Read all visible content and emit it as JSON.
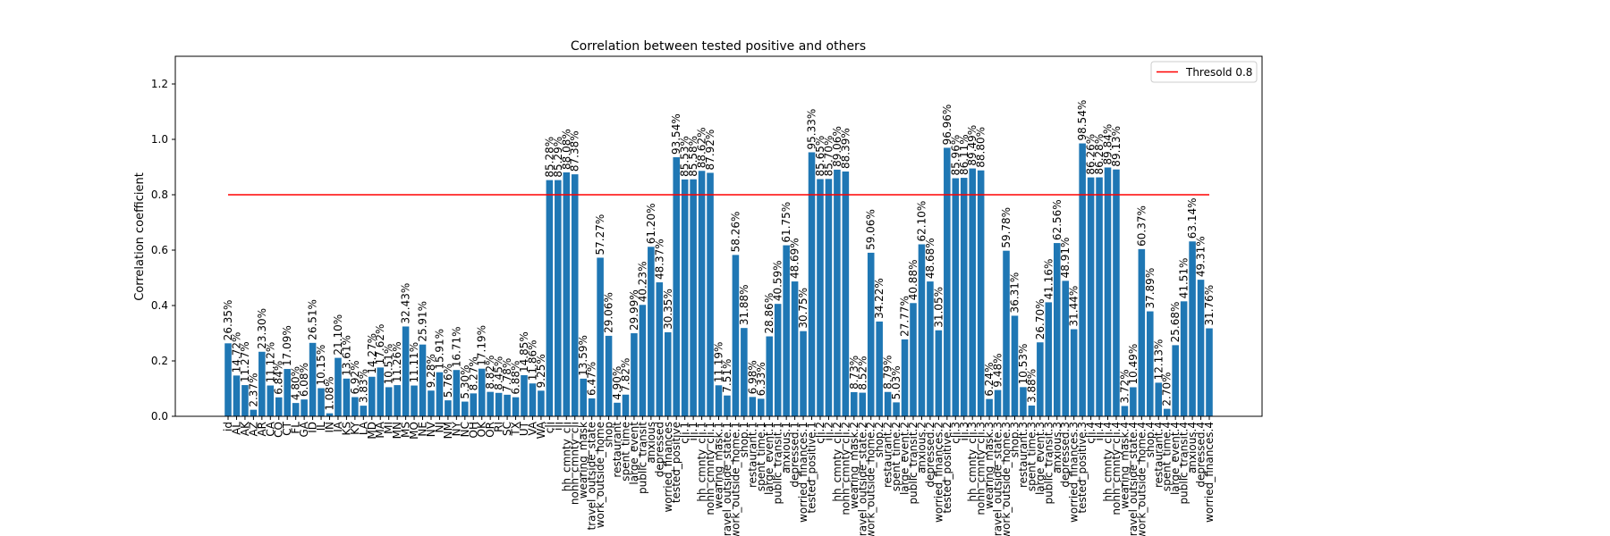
{
  "chart_data": {
    "type": "bar",
    "title": "Correlation between tested positive and others",
    "y_label": "Correlation coefficient",
    "color": "#1f77b4",
    "ylim": [
      0,
      1.3
    ],
    "yticks": [
      {
        "value": 0,
        "label": "0.0"
      },
      {
        "value": 0.2,
        "label": "0.2"
      },
      {
        "value": 0.4,
        "label": "0.4"
      },
      {
        "value": 0.6,
        "label": "0.6"
      },
      {
        "value": 0.8,
        "label": "0.8"
      },
      {
        "value": 1.0,
        "label": "1.0"
      },
      {
        "value": 1.2,
        "label": "1.2"
      }
    ],
    "threshold": {
      "name": "Thresold 0.8",
      "value": 0.8,
      "color": "#ff0000"
    },
    "legend_position": "upper right",
    "categories": [
      "id",
      "AL",
      "AK",
      "AZ",
      "AR",
      "CA",
      "CO",
      "CT",
      "FL",
      "GA",
      "ID",
      "IL",
      "IN",
      "IA",
      "KS",
      "KY",
      "LA",
      "MD",
      "MA",
      "MI",
      "MN",
      "MS",
      "MO",
      "NE",
      "NV",
      "NJ",
      "NM",
      "NY",
      "NC",
      "OH",
      "OK",
      "OR",
      "RI",
      "SC",
      "TX",
      "UT",
      "VA",
      "WA",
      "cli",
      "ili",
      "hh_cmnty_cli",
      "nohh_cmnty_cli",
      "wearing_mask",
      "travel_outside_state",
      "work_outside_home",
      "shop",
      "restaurant",
      "spent_time",
      "large_event",
      "public_transit",
      "anxious",
      "depressed",
      "worried_finances",
      "tested_positive",
      "cli.1",
      "ili.1",
      "hh_cmnty_cli.1",
      "nohh_cmnty_cli.1",
      "wearing_mask.1",
      "travel_outside_state.1",
      "work_outside_home.1",
      "shop.1",
      "restaurant.1",
      "spent_time.1",
      "large_event.1",
      "public_transit.1",
      "anxious.1",
      "depressed.1",
      "worried_finances.1",
      "tested_positive.1",
      "cli.2",
      "ili.2",
      "hh_cmnty_cli.2",
      "nohh_cmnty_cli.2",
      "wearing_mask.2",
      "travel_outside_state.2",
      "work_outside_home.2",
      "shop.2",
      "restaurant.2",
      "spent_time.2",
      "large_event.2",
      "public_transit.2",
      "anxious.2",
      "depressed.2",
      "worried_finances.2",
      "tested_positive.2",
      "cli.3",
      "ili.3",
      "hh_cmnty_cli.3",
      "nohh_cmnty_cli.3",
      "wearing_mask.3",
      "travel_outside_state.3",
      "work_outside_home.3",
      "shop.3",
      "restaurant.3",
      "spent_time.3",
      "large_event.3",
      "public_transit.3",
      "anxious.3",
      "depressed.3",
      "worried_finances.3",
      "tested_positive.3",
      "cli.4",
      "ili.4",
      "hh_cmnty_cli.4",
      "nohh_cmnty_cli.4",
      "wearing_mask.4",
      "travel_outside_state.4",
      "work_outside_home.4",
      "shop.4",
      "restaurant.4",
      "spent_time.4",
      "large_event.4",
      "public_transit.4",
      "anxious.4",
      "depressed.4",
      "worried_finances.4"
    ],
    "values": [
      0.2635,
      0.1472,
      0.1127,
      0.0237,
      0.233,
      0.1112,
      0.0684,
      0.1709,
      0.048,
      0.0608,
      0.2651,
      0.1015,
      0.0108,
      0.211,
      0.1361,
      0.0692,
      0.0383,
      0.1427,
      0.1762,
      0.1051,
      0.1126,
      0.3243,
      0.1111,
      0.2591,
      0.0928,
      0.1591,
      0.0576,
      0.1671,
      0.053,
      0.0827,
      0.1719,
      0.0882,
      0.0845,
      0.0778,
      0.0688,
      0.1485,
      0.1186,
      0.0925,
      0.8528,
      0.8529,
      0.8808,
      0.8738,
      0.1359,
      0.0647,
      0.5727,
      0.2906,
      0.049,
      0.0782,
      0.2999,
      0.4023,
      0.612,
      0.4837,
      0.3035,
      0.9354,
      0.8553,
      0.8558,
      0.8862,
      0.8792,
      0.1119,
      0.0751,
      0.5826,
      0.3188,
      0.0698,
      0.0633,
      0.2886,
      0.4059,
      0.6175,
      0.4869,
      0.3075,
      0.9533,
      0.8565,
      0.857,
      0.8906,
      0.8839,
      0.0873,
      0.0852,
      0.5906,
      0.3422,
      0.0879,
      0.0503,
      0.2777,
      0.4088,
      0.621,
      0.4868,
      0.3105,
      0.9696,
      0.8596,
      0.8611,
      0.8949,
      0.888,
      0.0624,
      0.0948,
      0.5978,
      0.3631,
      0.1053,
      0.0388,
      0.267,
      0.4116,
      0.6256,
      0.4891,
      0.3144,
      0.9854,
      0.8626,
      0.8628,
      0.8984,
      0.8913,
      0.0372,
      0.1049,
      0.6037,
      0.3789,
      0.1213,
      0.027,
      0.2568,
      0.4151,
      0.6314,
      0.4931,
      0.3176
    ],
    "value_labels": [
      "26.35%",
      "14.72%",
      "11.27%",
      "2.37%",
      "23.30%",
      "11.12%",
      "6.84%",
      "17.09%",
      "4.80%",
      "6.08%",
      "26.51%",
      "10.15%",
      "1.08%",
      "21.10%",
      "13.61%",
      "6.92%",
      "3.83%",
      "14.27%",
      "17.62%",
      "10.51%",
      "11.26%",
      "32.43%",
      "11.11%",
      "25.91%",
      "9.28%",
      "15.91%",
      "5.76%",
      "16.71%",
      "5.30%",
      "8.27%",
      "17.19%",
      "8.82%",
      "8.45%",
      "7.78%",
      "6.88%",
      "14.85%",
      "11.86%",
      "9.25%",
      "85.28%",
      "85.29%",
      "88.08%",
      "87.38%",
      "13.59%",
      "6.47%",
      "57.27%",
      "29.06%",
      "4.90%",
      "7.82%",
      "29.99%",
      "40.23%",
      "61.20%",
      "48.37%",
      "30.35%",
      "93.54%",
      "85.53%",
      "85.58%",
      "88.62%",
      "87.92%",
      "11.19%",
      "7.51%",
      "58.26%",
      "31.88%",
      "6.98%",
      "6.33%",
      "28.86%",
      "40.59%",
      "61.75%",
      "48.69%",
      "30.75%",
      "95.33%",
      "85.65%",
      "85.70%",
      "89.06%",
      "88.39%",
      "8.73%",
      "8.52%",
      "59.06%",
      "34.22%",
      "8.79%",
      "5.03%",
      "27.77%",
      "40.88%",
      "62.10%",
      "48.68%",
      "31.05%",
      "96.96%",
      "85.96%",
      "86.11%",
      "89.49%",
      "88.80%",
      "6.24%",
      "9.48%",
      "59.78%",
      "36.31%",
      "10.53%",
      "3.88%",
      "26.70%",
      "41.16%",
      "62.56%",
      "48.91%",
      "31.44%",
      "98.54%",
      "86.26%",
      "86.28%",
      "89.84%",
      "89.13%",
      "3.72%",
      "10.49%",
      "60.37%",
      "37.89%",
      "12.13%",
      "2.70%",
      "25.68%",
      "41.51%",
      "63.14%",
      "49.31%",
      "31.76%"
    ]
  }
}
